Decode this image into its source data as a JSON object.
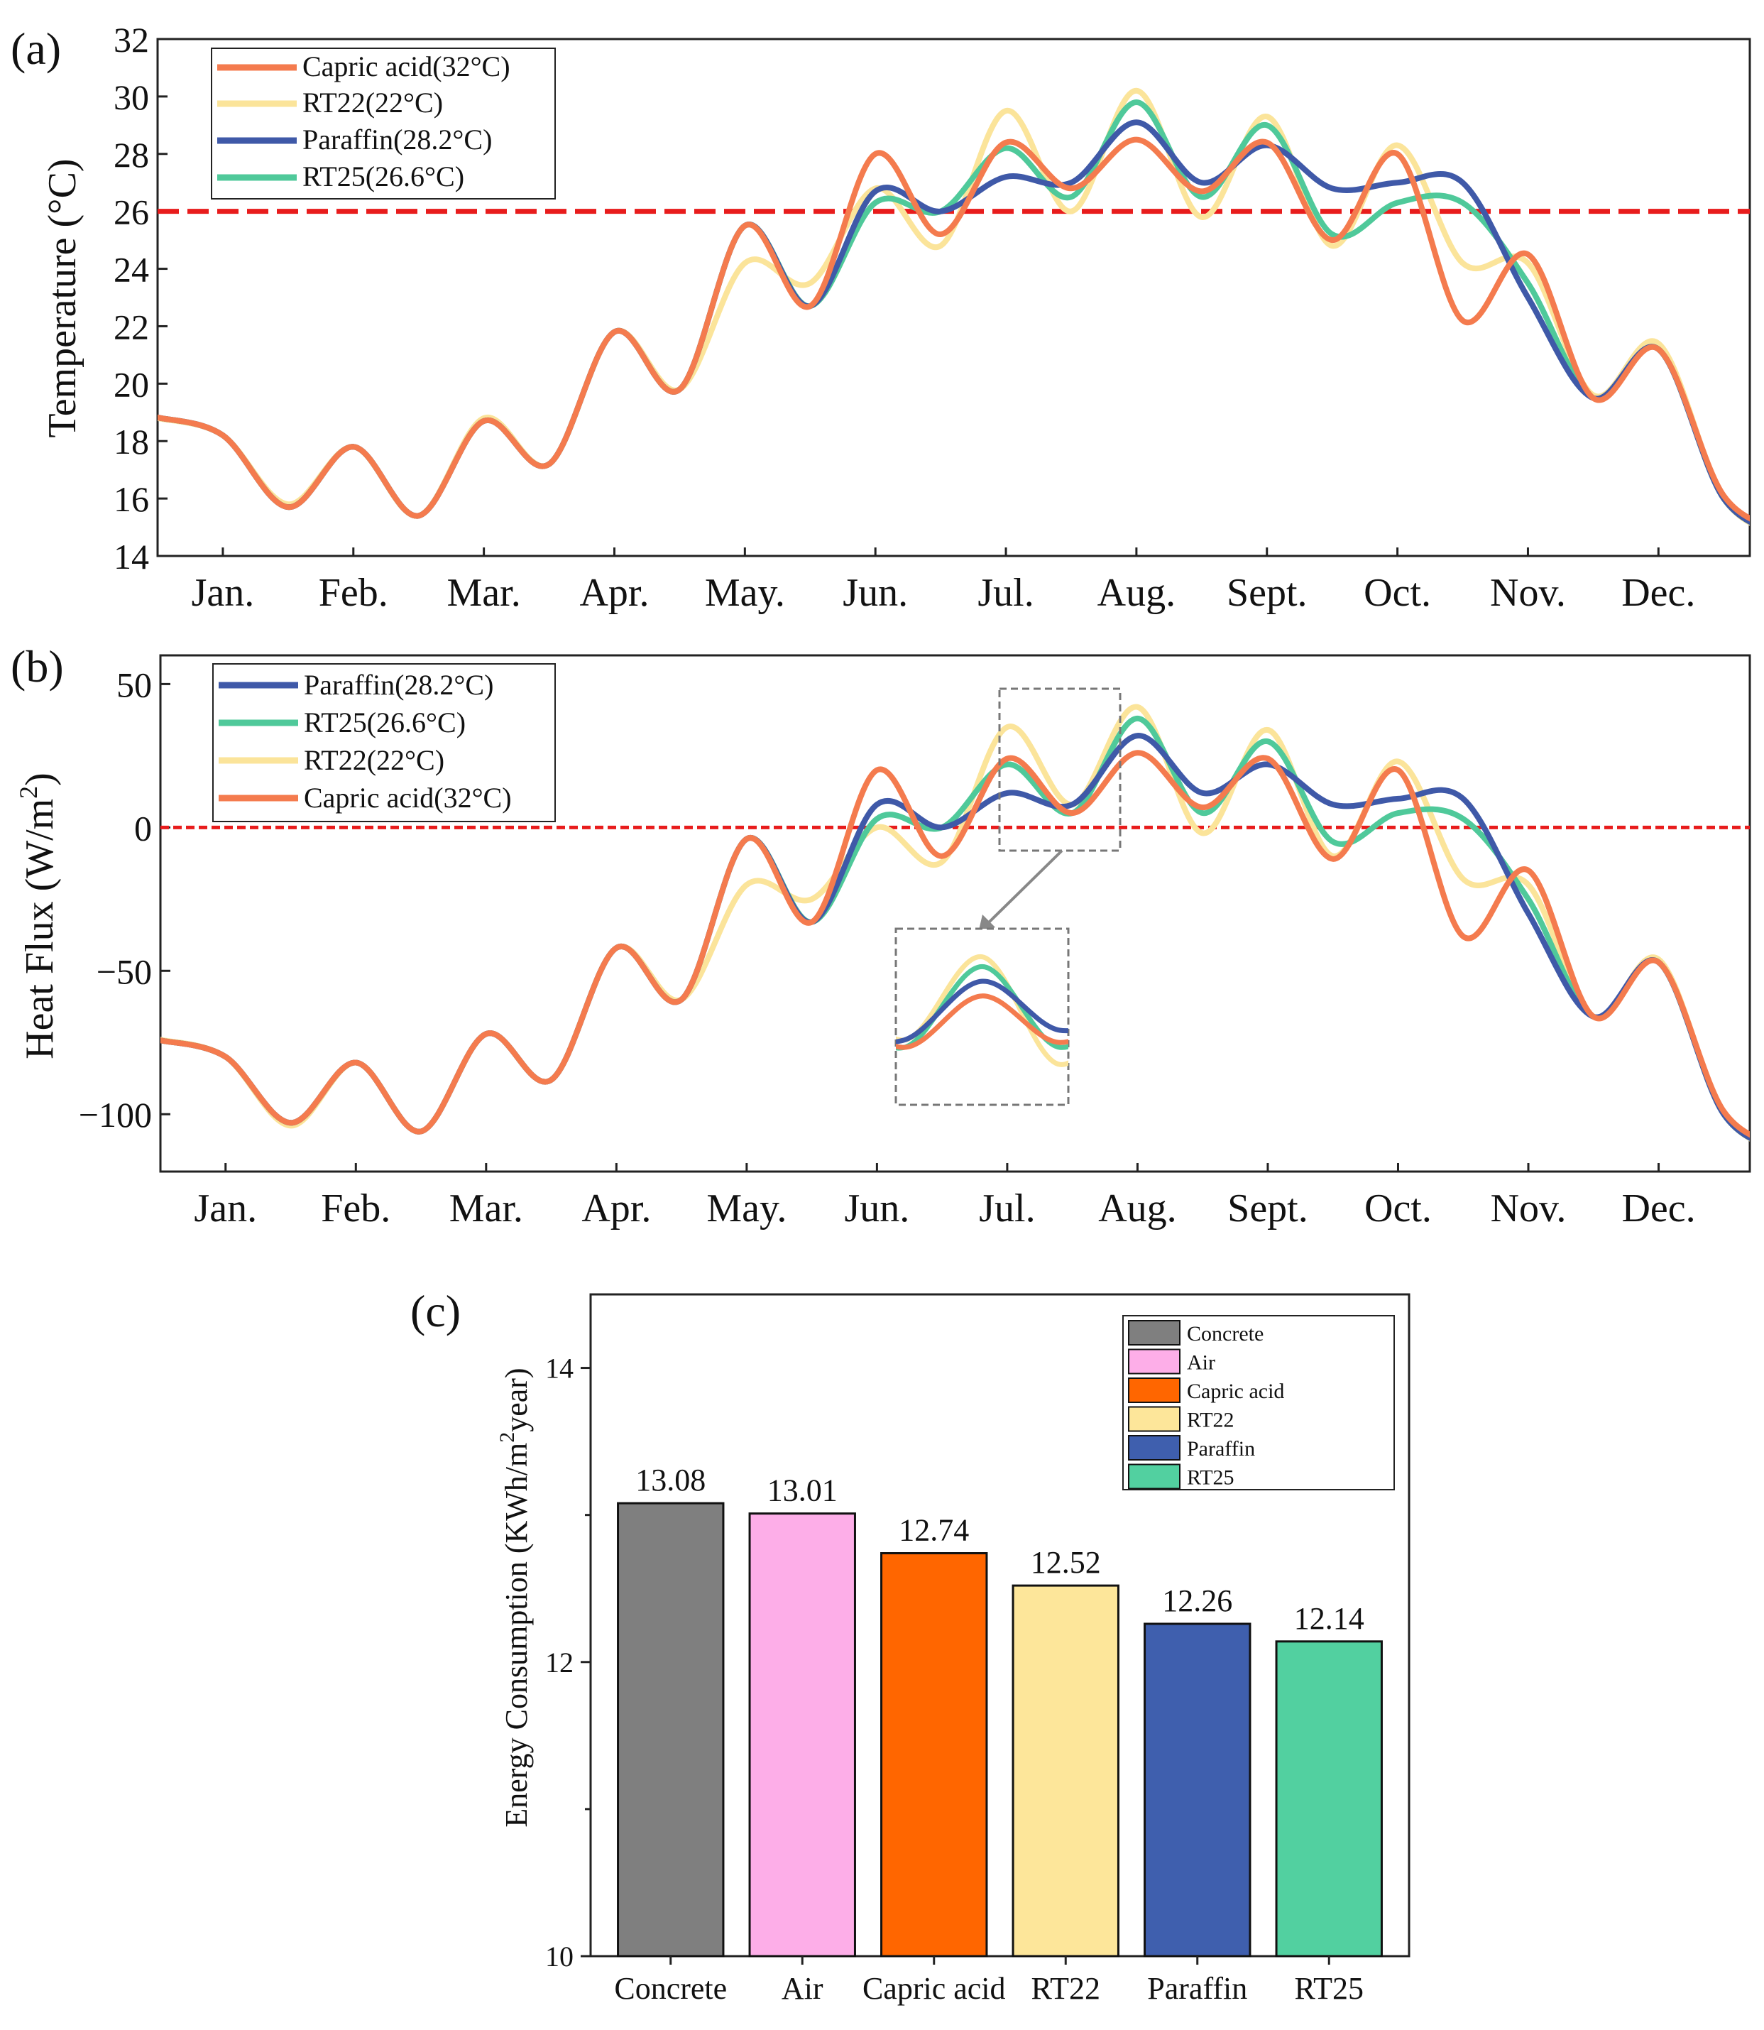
{
  "chart_data": [
    {
      "panel": "(a)",
      "type": "line",
      "ylabel": "Temperature (°C)",
      "ylim": [
        14,
        32
      ],
      "yticks": [
        "14",
        "16",
        "18",
        "20",
        "22",
        "24",
        "26",
        "28",
        "30",
        "32"
      ],
      "categories": [
        "Jan.",
        "Feb.",
        "Mar.",
        "Apr.",
        "May.",
        "Jun.",
        "Jul.",
        "Aug.",
        "Sept.",
        "Oct.",
        "Nov.",
        "Dec."
      ],
      "threshold": 26,
      "legend_position": "top-left",
      "legend_order": [
        "Capric acid(32°C)",
        "RT22(22°C)",
        "Paraffin(28.2°C)",
        "RT25(26.6°C)"
      ],
      "colors": {
        "Capric acid(32°C)": "#f47b4e",
        "RT22(22°C)": "#fbe49a",
        "Paraffin(28.2°C)": "#3f59a8",
        "RT25(26.6°C)": "#4fc99a",
        "threshold": "#e81c1c"
      },
      "x": [
        0,
        0.5,
        1,
        1.5,
        2,
        2.5,
        3,
        3.5,
        4,
        4.5,
        5,
        5.5,
        6,
        6.5,
        7,
        7.5,
        8,
        8.5,
        9,
        9.5,
        10,
        10.5,
        11,
        11.5
      ],
      "series": [
        {
          "name": "RT22(22°C)",
          "values": [
            18.2,
            15.8,
            17.8,
            15.4,
            18.8,
            17.2,
            21.8,
            19.8,
            24.2,
            23.5,
            26.8,
            24.8,
            29.5,
            26.0,
            30.2,
            25.8,
            29.3,
            24.8,
            28.3,
            24.2,
            24.2,
            19.6,
            21.4,
            16.0
          ]
        },
        {
          "name": "RT25(26.6°C)",
          "values": [
            18.2,
            15.7,
            17.8,
            15.4,
            18.7,
            17.2,
            21.8,
            19.8,
            25.5,
            22.7,
            26.3,
            26.0,
            28.2,
            26.5,
            29.8,
            26.5,
            29.0,
            25.2,
            26.3,
            26.3,
            23.5,
            19.5,
            21.2,
            16.0
          ]
        },
        {
          "name": "Paraffin(28.2°C)",
          "values": [
            18.2,
            15.7,
            17.8,
            15.4,
            18.7,
            17.2,
            21.8,
            19.8,
            25.5,
            22.7,
            26.7,
            26.0,
            27.2,
            27.0,
            29.1,
            27.0,
            28.3,
            26.8,
            27.0,
            27.0,
            23.0,
            19.5,
            21.2,
            16.0
          ]
        },
        {
          "name": "Capric acid(32°C)",
          "values": [
            18.2,
            15.7,
            17.8,
            15.4,
            18.7,
            17.2,
            21.8,
            19.8,
            25.5,
            22.7,
            28.0,
            25.2,
            28.4,
            26.8,
            28.5,
            26.7,
            28.4,
            25.0,
            28.0,
            22.2,
            24.5,
            19.5,
            21.2,
            16.1
          ]
        }
      ]
    },
    {
      "panel": "(b)",
      "type": "line",
      "ylabel": "Heat Flux (W/m",
      "ylabel_sup": "2",
      "ylabel_end": ")",
      "ylim": [
        -120,
        60
      ],
      "yticks": [
        "50",
        "0",
        "−50",
        "−100"
      ],
      "categories": [
        "Jan.",
        "Feb.",
        "Mar.",
        "Apr.",
        "May.",
        "Jun.",
        "Jul.",
        "Aug.",
        "Sept.",
        "Oct.",
        "Nov.",
        "Dec."
      ],
      "threshold": 0,
      "legend_position": "top-left",
      "legend_order": [
        "Paraffin(28.2°C)",
        "RT25(26.6°C)",
        "RT22(22°C)",
        "Capric acid(32°C)"
      ],
      "colors": {
        "Capric acid(32°C)": "#f47b4e",
        "RT22(22°C)": "#fbe49a",
        "Paraffin(28.2°C)": "#3f59a8",
        "RT25(26.6°C)": "#4fc99a",
        "threshold": "#e81c1c"
      },
      "x": [
        0,
        0.5,
        1,
        1.5,
        2,
        2.5,
        3,
        3.5,
        4,
        4.5,
        5,
        5.5,
        6,
        6.5,
        7,
        7.5,
        8,
        8.5,
        9,
        9.5,
        10,
        10.5,
        11,
        11.5
      ],
      "series": [
        {
          "name": "RT22(22°C)",
          "values": [
            -80,
            -104,
            -82,
            -106,
            -72,
            -88,
            -42,
            -60,
            -20,
            -25,
            0,
            -12,
            35,
            8,
            42,
            -2,
            34,
            -10,
            23,
            -18,
            -20,
            -66,
            -46,
            -100
          ]
        },
        {
          "name": "RT25(26.6°C)",
          "values": [
            -80,
            -103,
            -82,
            -106,
            -72,
            -88,
            -42,
            -60,
            -4,
            -33,
            3,
            0,
            22,
            5,
            38,
            5,
            30,
            -5,
            5,
            3,
            -25,
            -66,
            -47,
            -100
          ]
        },
        {
          "name": "Paraffin(28.2°C)",
          "values": [
            -80,
            -103,
            -82,
            -106,
            -72,
            -88,
            -42,
            -60,
            -4,
            -33,
            8,
            0,
            12,
            8,
            32,
            12,
            22,
            8,
            10,
            10,
            -30,
            -66,
            -47,
            -100
          ]
        },
        {
          "name": "Capric acid(32°C)",
          "values": [
            -80,
            -103,
            -82,
            -106,
            -72,
            -88,
            -42,
            -60,
            -4,
            -33,
            20,
            -10,
            24,
            5,
            26,
            7,
            24,
            -11,
            20,
            -38,
            -15,
            -66,
            -47,
            -99
          ]
        }
      ],
      "inset": {
        "x_range": [
          6.5,
          7.5
        ],
        "series_order": [
          "RT22(22°C)",
          "RT25(26.6°C)",
          "Paraffin(28.2°C)",
          "Capric acid(32°C)"
        ]
      }
    },
    {
      "panel": "(c)",
      "type": "bar",
      "ylabel": "Energy Consumption (KWh/m",
      "ylabel_sup": "2",
      "ylabel_end": "year)",
      "ylim": [
        10,
        14.5
      ],
      "yticks": [
        "10",
        "12",
        "14"
      ],
      "categories": [
        "Concrete",
        "Air",
        "Capric acid",
        "RT22",
        "Paraffin",
        "RT25"
      ],
      "values": [
        13.08,
        13.01,
        12.74,
        12.52,
        12.26,
        12.14
      ],
      "data_labels": [
        "13.08",
        "13.01",
        "12.74",
        "12.52",
        "12.26",
        "12.14"
      ],
      "colors": [
        "#7f7f7f",
        "#fdaee8",
        "#ff6600",
        "#fde69a",
        "#3f5fae",
        "#52d0a0"
      ],
      "legend_position": "top-right"
    }
  ]
}
